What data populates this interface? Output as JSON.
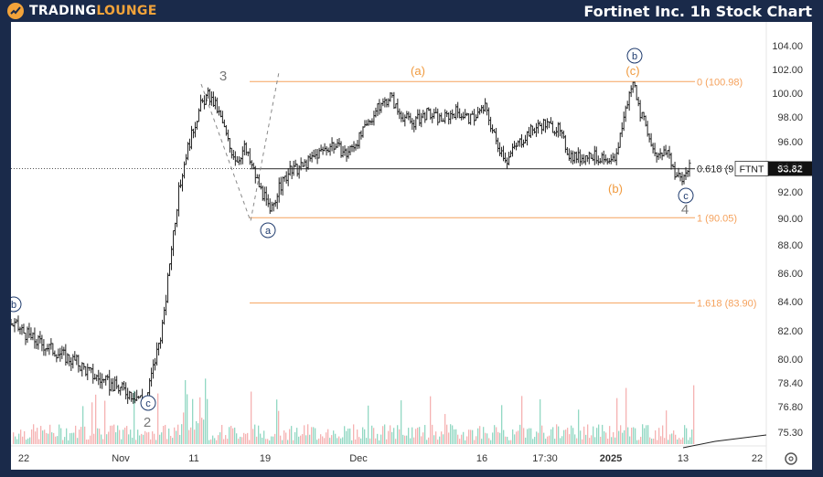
{
  "header": {
    "brand": "TradingLounge",
    "title": "Fortinet Inc. 1h Stock Chart"
  },
  "colors": {
    "fib": "#f5a25d",
    "wave_orange": "#f09a3e",
    "bar": "#222222",
    "price_tag_bg": "#111111",
    "vol_up": "#7fd1b9",
    "vol_down": "#f3a5a5",
    "frame": "#1a2a4a"
  },
  "chart_data": {
    "type": "ohlc",
    "symbol": "FTNT",
    "last_price": 93.82,
    "price_tag_label": "93.82",
    "y_ticks": [
      "104.00",
      "102.00",
      "100.00",
      "98.00",
      "96.00",
      "94.00",
      "92.00",
      "90.00",
      "88.00",
      "86.00",
      "84.00",
      "82.00",
      "80.00",
      "78.40",
      "76.80",
      "75.30"
    ],
    "x_ticks": [
      "22",
      "Nov",
      "11",
      "19",
      "Dec",
      "16",
      "17:30",
      "2025",
      "13",
      "22"
    ],
    "path": [
      [
        0,
        82.5
      ],
      [
        3,
        82.0
      ],
      [
        6,
        81.4
      ],
      [
        10,
        80.9
      ],
      [
        14,
        80.3
      ],
      [
        18,
        79.8
      ],
      [
        22,
        79.0
      ],
      [
        26,
        78.4
      ],
      [
        30,
        78.0
      ],
      [
        34,
        77.6
      ],
      [
        37,
        77.2
      ],
      [
        40,
        80.5
      ],
      [
        42,
        83.0
      ],
      [
        44,
        88.0
      ],
      [
        46,
        92.0
      ],
      [
        48,
        95.0
      ],
      [
        50,
        97.0
      ],
      [
        52,
        99.0
      ],
      [
        54,
        99.8
      ],
      [
        56,
        99.0
      ],
      [
        58,
        97.5
      ],
      [
        60,
        95.5
      ],
      [
        62,
        94.5
      ],
      [
        64,
        95.5
      ],
      [
        66,
        94.0
      ],
      [
        68,
        92.5
      ],
      [
        70,
        91.2
      ],
      [
        71,
        90.3
      ],
      [
        73,
        92.0
      ],
      [
        76,
        93.5
      ],
      [
        80,
        94.0
      ],
      [
        84,
        95.0
      ],
      [
        88,
        95.8
      ],
      [
        92,
        95.0
      ],
      [
        96,
        96.5
      ],
      [
        100,
        98.5
      ],
      [
        104,
        99.8
      ],
      [
        106,
        98.5
      ],
      [
        110,
        97.5
      ],
      [
        114,
        98.3
      ],
      [
        118,
        97.8
      ],
      [
        122,
        98.5
      ],
      [
        126,
        97.8
      ],
      [
        130,
        98.8
      ],
      [
        133,
        96.0
      ],
      [
        136,
        94.5
      ],
      [
        138,
        95.5
      ],
      [
        142,
        96.8
      ],
      [
        146,
        97.5
      ],
      [
        150,
        97.0
      ],
      [
        153,
        95.0
      ],
      [
        156,
        94.7
      ],
      [
        159,
        95.0
      ],
      [
        162,
        94.5
      ],
      [
        164,
        94.0
      ],
      [
        166,
        95.0
      ],
      [
        168,
        98.0
      ],
      [
        170,
        100.5
      ],
      [
        171,
        101.0
      ],
      [
        172,
        98.8
      ],
      [
        174,
        97.2
      ],
      [
        176,
        95.5
      ],
      [
        178,
        94.8
      ],
      [
        180,
        95.3
      ],
      [
        182,
        93.5
      ],
      [
        184,
        92.9
      ],
      [
        185,
        93.6
      ],
      [
        186,
        93.82
      ]
    ],
    "fib_levels": [
      {
        "ratio": "0",
        "value": 100.98,
        "label": "0 (100.98)"
      },
      {
        "ratio": "0.618",
        "value": 93.81,
        "label": "0.618 (9"
      },
      {
        "ratio": "1",
        "value": 90.05,
        "label": "1 (90.05)"
      },
      {
        "ratio": "1.618",
        "value": 83.9,
        "label": "1.618 (83.90)"
      }
    ],
    "wave_labels": [
      {
        "text": "b",
        "style": "circle-blue"
      },
      {
        "text": "c",
        "style": "circle-blue"
      },
      {
        "text": "2",
        "style": "gray"
      },
      {
        "text": "3",
        "style": "gray"
      },
      {
        "text": "a",
        "style": "circle-blue"
      },
      {
        "text": "(a)",
        "style": "orange"
      },
      {
        "text": "b",
        "style": "circle-blue"
      },
      {
        "text": "(c)",
        "style": "orange"
      },
      {
        "text": "(b)",
        "style": "orange"
      },
      {
        "text": "c",
        "style": "circle-blue"
      },
      {
        "text": "4",
        "style": "gray"
      }
    ]
  }
}
